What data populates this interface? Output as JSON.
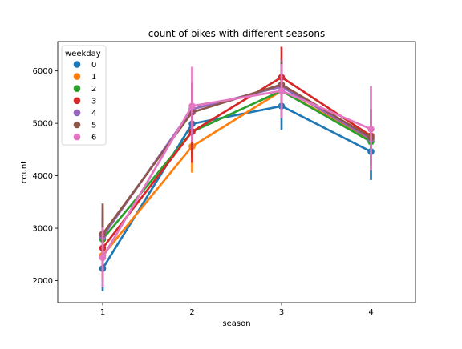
{
  "chart_data": {
    "type": "line",
    "title": "count of bikes with different seasons",
    "xlabel": "season",
    "ylabel": "count",
    "categories": [
      "1",
      "2",
      "3",
      "4"
    ],
    "ylim": [
      1580,
      6560
    ],
    "yticks": [
      2000,
      3000,
      4000,
      5000,
      6000
    ],
    "grid": false,
    "legend": {
      "title": "weekday",
      "position": "top-left"
    },
    "error_bars": "vertical lines",
    "series": [
      {
        "name": "0",
        "color": "#1f77b4",
        "values": [
          2230,
          4990,
          5330,
          4460
        ],
        "lower": [
          1800,
          4600,
          4880,
          3920
        ],
        "upper": [
          2630,
          5350,
          5800,
          4990
        ]
      },
      {
        "name": "1",
        "color": "#ff7f0e",
        "values": [
          2480,
          4560,
          5620,
          4690
        ],
        "lower": [
          2050,
          4060,
          5250,
          4160
        ],
        "upper": [
          2900,
          5060,
          6000,
          5200
        ]
      },
      {
        "name": "2",
        "color": "#2ca02c",
        "values": [
          2790,
          4840,
          5620,
          4650
        ],
        "lower": [
          2300,
          4400,
          5200,
          4180
        ],
        "upper": [
          3250,
          5300,
          6070,
          5130
        ]
      },
      {
        "name": "3",
        "color": "#d62728",
        "values": [
          2620,
          4840,
          5880,
          4760
        ],
        "lower": [
          2200,
          4250,
          5310,
          4260
        ],
        "upper": [
          3050,
          5420,
          6460,
          5260
        ]
      },
      {
        "name": "4",
        "color": "#9467bd",
        "values": [
          2840,
          5270,
          5700,
          4700
        ],
        "lower": [
          2350,
          4700,
          5200,
          4200
        ],
        "upper": [
          3400,
          5800,
          6200,
          5200
        ]
      },
      {
        "name": "5",
        "color": "#8c564b",
        "values": [
          2890,
          5210,
          5740,
          4730
        ],
        "lower": [
          2370,
          4650,
          5310,
          4230
        ],
        "upper": [
          3470,
          5760,
          6180,
          5270
        ]
      },
      {
        "name": "6",
        "color": "#e377c2",
        "values": [
          2440,
          5330,
          5620,
          4890
        ],
        "lower": [
          1870,
          4640,
          5100,
          4100
        ],
        "upper": [
          3020,
          6080,
          6130,
          5710
        ]
      }
    ]
  }
}
